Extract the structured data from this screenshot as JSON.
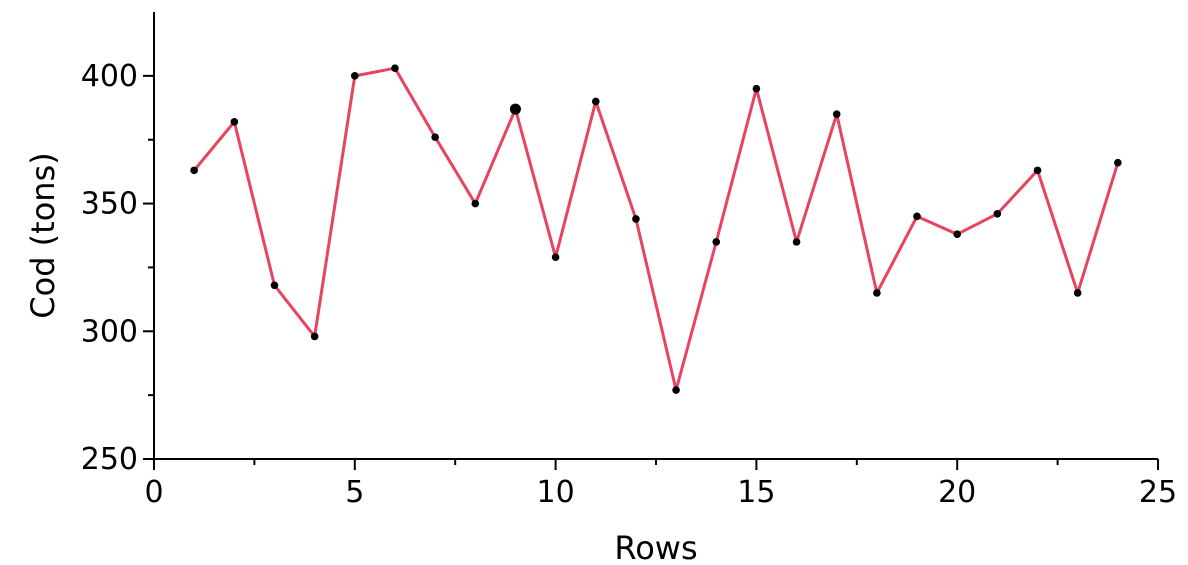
{
  "chart_data": {
    "type": "line",
    "title": "",
    "xlabel": "Rows",
    "ylabel": "Cod (tons)",
    "xlim": [
      0,
      25
    ],
    "ylim": [
      250,
      425
    ],
    "x_major_ticks": [
      0,
      5,
      10,
      15,
      20,
      25
    ],
    "x_minor_ticks": [
      2.5,
      7.5,
      12.5,
      17.5,
      22.5
    ],
    "y_major_ticks": [
      250,
      300,
      350,
      400
    ],
    "y_minor_ticks": [
      275,
      325,
      375
    ],
    "x_tick_labels": [
      "0",
      "5",
      "10",
      "15",
      "20",
      "25"
    ],
    "y_tick_labels": [
      "250",
      "300",
      "350",
      "400"
    ],
    "grid": false,
    "legend": "none",
    "line_color": "#e8435f",
    "marker_color": "#000000",
    "highlighted_point_index": 8,
    "series": [
      {
        "x": [
          1,
          2,
          3,
          4,
          5,
          6,
          7,
          8,
          9,
          10,
          11,
          12,
          13,
          14,
          15,
          16,
          17,
          18,
          19,
          20,
          21,
          22,
          23,
          24
        ],
        "values": [
          363,
          382,
          318,
          298,
          400,
          403,
          376,
          350,
          387,
          329,
          390,
          344,
          277,
          335,
          395,
          335,
          385,
          315,
          345,
          338,
          346,
          363,
          315,
          366
        ]
      }
    ]
  }
}
